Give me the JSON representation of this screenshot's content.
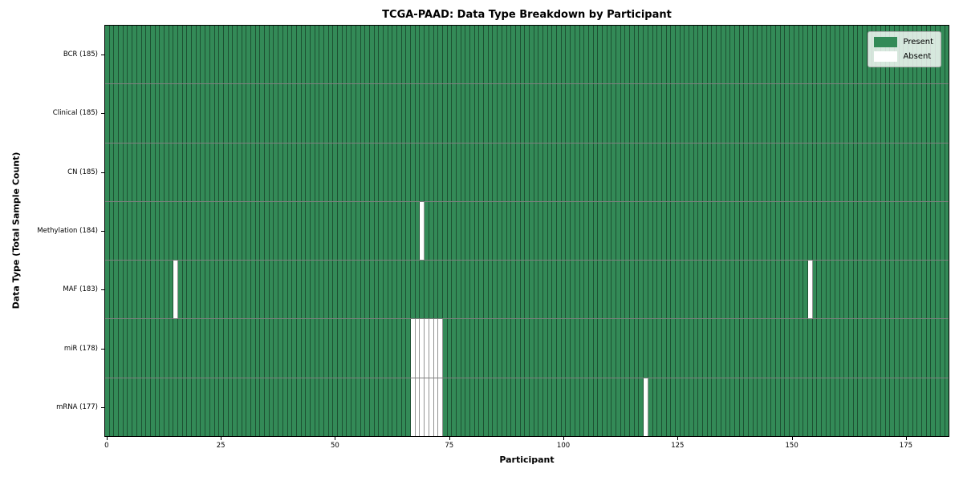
{
  "title": "TCGA-PAAD: Data Type Breakdown by Participant",
  "xlabel": "Participant",
  "ylabel": "Data Type (Total Sample Count)",
  "colors": {
    "present": "#338a57",
    "absent": "#ffffff",
    "cell_edge": "rgba(0,0,0,0.42)",
    "row_edge": "rgba(0,0,0,0.50)",
    "plot_border": "#000000",
    "legend_bg": "rgba(255,255,255,0.8)",
    "legend_border": "#b0b0b0",
    "figure_bg": "#ffffff"
  },
  "chart_data": {
    "type": "heatmap",
    "title": "TCGA-PAAD: Data Type Breakdown by Participant",
    "xlabel": "Participant",
    "ylabel": "Data Type (Total Sample Count)",
    "n_participants": 185,
    "x_ticks": [
      0,
      25,
      50,
      75,
      100,
      125,
      150,
      175
    ],
    "xlim": [
      0,
      185
    ],
    "grid": "cell-edges",
    "legend_position": "upper right",
    "rows": [
      {
        "name": "BCR",
        "label": "BCR (185)",
        "total": 185,
        "absent": []
      },
      {
        "name": "Clinical",
        "label": "Clinical (185)",
        "total": 185,
        "absent": []
      },
      {
        "name": "CN",
        "label": "CN (185)",
        "total": 185,
        "absent": []
      },
      {
        "name": "Methylation",
        "label": "Methylation (184)",
        "total": 184,
        "absent": [
          69
        ]
      },
      {
        "name": "MAF",
        "label": "MAF (183)",
        "total": 183,
        "absent": [
          15,
          154
        ]
      },
      {
        "name": "miR",
        "label": "miR (178)",
        "total": 178,
        "absent": [
          67,
          68,
          69,
          70,
          71,
          72,
          73
        ]
      },
      {
        "name": "mRNA",
        "label": "mRNA (177)",
        "total": 177,
        "absent": [
          67,
          68,
          69,
          70,
          71,
          72,
          73,
          118
        ]
      }
    ],
    "legend": [
      {
        "label": "Present",
        "color": "#338a57"
      },
      {
        "label": "Absent",
        "color": "#ffffff"
      }
    ]
  }
}
